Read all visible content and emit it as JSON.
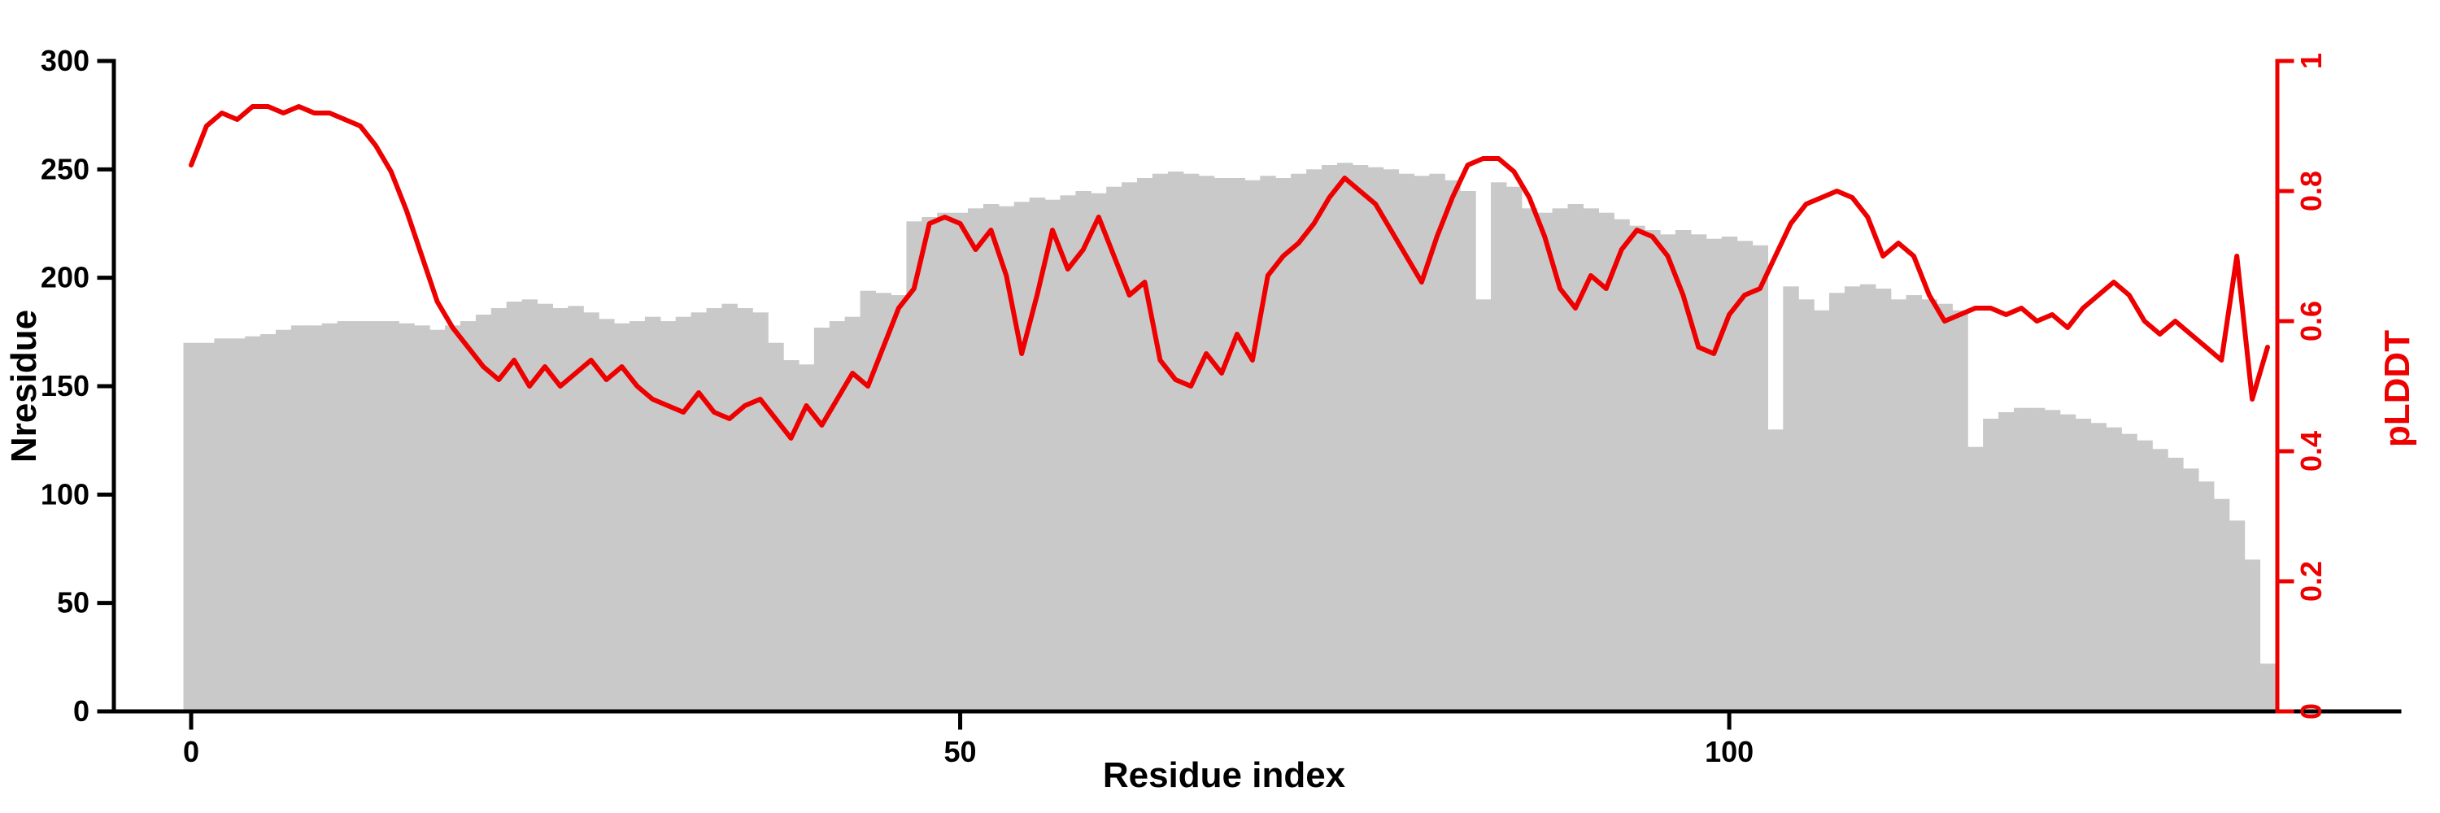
{
  "figure": {
    "background": "#ffffff"
  },
  "chart_data": {
    "type": "bar+line",
    "title": "",
    "xlabel": "Residue index",
    "ylabel_left": "Nresidue",
    "ylabel_right": "pLDDT",
    "x_ticks": [
      0,
      50,
      100
    ],
    "y_ticks_left": [
      0,
      50,
      100,
      150,
      200,
      250,
      300
    ],
    "y_ticks_right": [
      0,
      0.2,
      0.4,
      0.6,
      0.8,
      1
    ],
    "ylim_left": [
      0,
      300
    ],
    "ylim_right": [
      0,
      1
    ],
    "x_range": {
      "start": 0,
      "step": 1,
      "count": 136
    },
    "grid": false,
    "legend": "none",
    "bar_color": "#c9c9c9",
    "line_color": "#ee0000",
    "axis_color": "#000000",
    "series": [
      {
        "name": "Nresidue",
        "type": "bar",
        "axis": "left",
        "values": [
          170,
          170,
          172,
          172,
          173,
          174,
          176,
          178,
          178,
          179,
          180,
          180,
          180,
          180,
          179,
          178,
          176,
          178,
          180,
          183,
          186,
          189,
          190,
          188,
          186,
          187,
          184,
          181,
          179,
          180,
          182,
          180,
          182,
          184,
          186,
          188,
          186,
          184,
          170,
          162,
          160,
          177,
          180,
          182,
          194,
          193,
          192,
          226,
          228,
          230,
          230,
          232,
          234,
          233,
          235,
          237,
          236,
          238,
          240,
          239,
          242,
          244,
          246,
          248,
          249,
          248,
          247,
          246,
          246,
          245,
          247,
          246,
          248,
          250,
          252,
          253,
          252,
          251,
          250,
          248,
          247,
          248,
          245,
          240,
          190,
          244,
          242,
          232,
          230,
          232,
          234,
          232,
          230,
          227,
          224,
          222,
          220,
          222,
          220,
          218,
          219,
          217,
          215,
          130,
          196,
          190,
          185,
          193,
          196,
          197,
          195,
          190,
          192,
          190,
          188,
          185,
          122,
          135,
          138,
          140,
          140,
          139,
          137,
          135,
          133,
          131,
          128,
          125,
          121,
          117,
          112,
          106,
          98,
          88,
          70,
          22
        ]
      },
      {
        "name": "pLDDT",
        "type": "line",
        "axis": "right",
        "values": [
          0.84,
          0.9,
          0.92,
          0.91,
          0.93,
          0.93,
          0.92,
          0.93,
          0.92,
          0.92,
          0.91,
          0.9,
          0.87,
          0.83,
          0.77,
          0.7,
          0.63,
          0.59,
          0.56,
          0.53,
          0.51,
          0.54,
          0.5,
          0.53,
          0.5,
          0.52,
          0.54,
          0.51,
          0.53,
          0.5,
          0.48,
          0.47,
          0.46,
          0.49,
          0.46,
          0.45,
          0.47,
          0.48,
          0.45,
          0.42,
          0.47,
          0.44,
          0.48,
          0.52,
          0.5,
          0.56,
          0.62,
          0.65,
          0.75,
          0.76,
          0.75,
          0.71,
          0.74,
          0.67,
          0.55,
          0.64,
          0.74,
          0.68,
          0.71,
          0.76,
          0.7,
          0.64,
          0.66,
          0.54,
          0.51,
          0.5,
          0.55,
          0.52,
          0.58,
          0.54,
          0.67,
          0.7,
          0.72,
          0.75,
          0.79,
          0.82,
          0.8,
          0.78,
          0.74,
          0.7,
          0.66,
          0.73,
          0.79,
          0.84,
          0.85,
          0.85,
          0.83,
          0.79,
          0.73,
          0.65,
          0.62,
          0.67,
          0.65,
          0.71,
          0.74,
          0.73,
          0.7,
          0.64,
          0.56,
          0.55,
          0.61,
          0.64,
          0.65,
          0.7,
          0.75,
          0.78,
          0.79,
          0.8,
          0.79,
          0.76,
          0.7,
          0.72,
          0.7,
          0.64,
          0.6,
          0.61,
          0.62,
          0.62,
          0.61,
          0.62,
          0.6,
          0.61,
          0.59,
          0.62,
          0.64,
          0.66,
          0.64,
          0.6,
          0.58,
          0.6,
          0.58,
          0.56,
          0.54,
          0.7,
          0.48,
          0.56
        ]
      }
    ]
  }
}
